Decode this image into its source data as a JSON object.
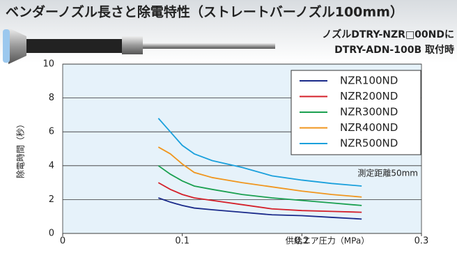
{
  "chart_data": {
    "type": "line",
    "title": "ベンダーノズル長さと除電特性（ストレートバーノズル100mm）",
    "subtitle": [
      "ノズルDTRY-NZR□00NDに",
      "DTRY-ADN-100B 取付時"
    ],
    "annotation": "測定距離50mm",
    "x_label": "供給エア圧力（MPa）",
    "y_label": "除電時間（秒）",
    "x": [
      0.08,
      0.09,
      0.1,
      0.11,
      0.125,
      0.15,
      0.175,
      0.2,
      0.225,
      0.25
    ],
    "series": [
      {
        "name": "NZR100ND",
        "color": "#1a2a8a",
        "values": [
          2.1,
          1.85,
          1.65,
          1.5,
          1.4,
          1.25,
          1.1,
          1.05,
          0.95,
          0.85
        ]
      },
      {
        "name": "NZR200ND",
        "color": "#d4202a",
        "values": [
          3.0,
          2.6,
          2.3,
          2.1,
          1.95,
          1.7,
          1.45,
          1.35,
          1.3,
          1.25
        ]
      },
      {
        "name": "NZR300ND",
        "color": "#1aa050",
        "values": [
          4.0,
          3.5,
          3.1,
          2.8,
          2.6,
          2.3,
          2.1,
          1.95,
          1.8,
          1.65
        ]
      },
      {
        "name": "NZR400ND",
        "color": "#f0961e",
        "values": [
          5.1,
          4.7,
          4.1,
          3.6,
          3.3,
          3.0,
          2.75,
          2.5,
          2.3,
          2.15
        ]
      },
      {
        "name": "NZR500ND",
        "color": "#1aa0dc",
        "values": [
          6.8,
          6.0,
          5.2,
          4.7,
          4.3,
          3.9,
          3.4,
          3.15,
          2.95,
          2.8
        ]
      }
    ],
    "xlim": [
      0,
      0.3
    ],
    "xticks": [
      0,
      0.1,
      0.2,
      0.3
    ],
    "ylim": [
      0,
      10
    ],
    "yticks": [
      0,
      2,
      4,
      6,
      8,
      10
    ],
    "grid": true,
    "legend": "upper right"
  }
}
